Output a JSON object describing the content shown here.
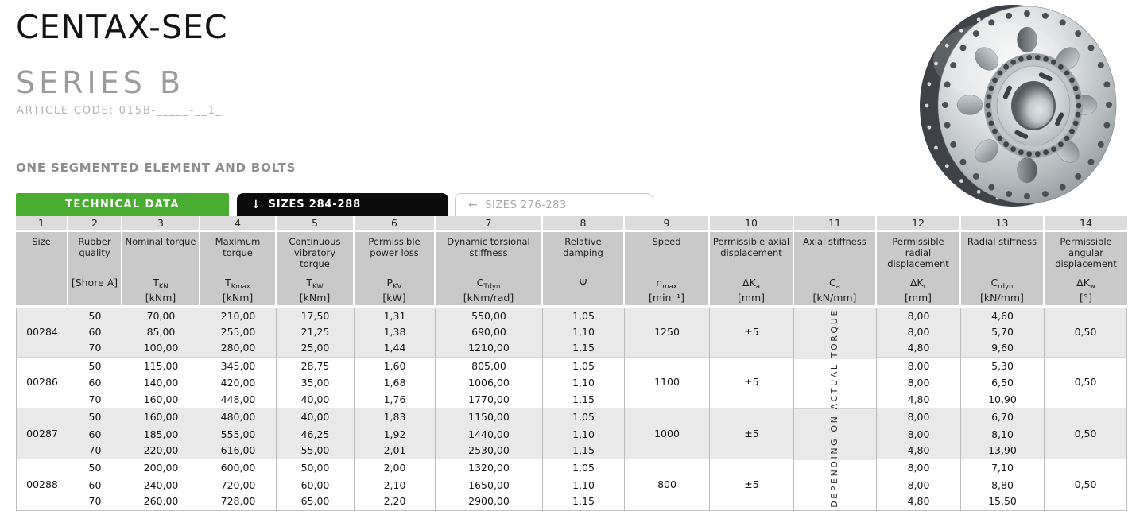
{
  "page": {
    "title": "CENTAX-SEC",
    "subtitle": "SERIES B",
    "article_code": "ARTICLE CODE: 015B-_____-__1_",
    "section_heading": "ONE SEGMENTED ELEMENT AND BOLTS"
  },
  "colors": {
    "accent_green": "#4aad31",
    "tab_black": "#0b0b0b",
    "header_gray": "#c9c9c9",
    "numrow_gray": "#dcdcdc",
    "row_shade": "#e9e9e9"
  },
  "tabs": [
    {
      "label": "TECHNICAL DATA",
      "icon": "",
      "active": true
    },
    {
      "label": "SIZES 284-288",
      "icon": "↓",
      "active": true
    },
    {
      "label": "SIZES 276-283",
      "icon": "←",
      "active": false
    }
  ],
  "table": {
    "column_numbers": [
      "1",
      "2",
      "3",
      "4",
      "5",
      "6",
      "7",
      "8",
      "9",
      "10",
      "11",
      "12",
      "13",
      "14"
    ],
    "columns": [
      {
        "name": "Size",
        "sym": "",
        "sub": "",
        "unit": ""
      },
      {
        "name": "Rubber quality",
        "sym": "[Shore A]",
        "sub": "",
        "unit": ""
      },
      {
        "name": "Nominal torque",
        "sym": "T",
        "sub": "KN",
        "unit": "[kNm]"
      },
      {
        "name": "Maximum torque",
        "sym": "T",
        "sub": "Kmax",
        "unit": "[kNm]"
      },
      {
        "name": "Continuous vibratory torque",
        "sym": "T",
        "sub": "KW",
        "unit": "[kNm]"
      },
      {
        "name": "Permissible power loss",
        "sym": "P",
        "sub": "KV",
        "unit": "[kW]"
      },
      {
        "name": "Dynamic torsional stiffness",
        "sym": "C",
        "sub": "Tdyn",
        "unit": "[kNm/rad]"
      },
      {
        "name": "Relative damping",
        "sym": "Ψ",
        "sub": "",
        "unit": ""
      },
      {
        "name": "Speed",
        "sym": "n",
        "sub": "max",
        "unit": "[min⁻¹]"
      },
      {
        "name": "Permissible axial displacement",
        "sym": "ΔK",
        "sub": "a",
        "unit": "[mm]"
      },
      {
        "name": "Axial stiffness",
        "sym": "C",
        "sub": "a",
        "unit": "[kN/mm]"
      },
      {
        "name": "Permissible radial displacement",
        "sym": "ΔK",
        "sub": "r",
        "unit": "[mm]"
      },
      {
        "name": "Radial stiffness",
        "sym": "C",
        "sub": "rdyn",
        "unit": "[kN/mm]"
      },
      {
        "name": "Permissible angular displacement",
        "sym": "ΔK",
        "sub": "w",
        "unit": "[°]"
      }
    ],
    "axial_stiffness_note": "DEPENDING ON ACTUAL TORQUE",
    "groups": [
      {
        "size": "00284",
        "speed": "1250",
        "axial_disp": "±5",
        "angular_disp": "0,50",
        "rows": [
          {
            "shore": "50",
            "tkn": "70,00",
            "tkmax": "210,00",
            "tkw": "17,50",
            "pkv": "1,31",
            "ctdyn": "550,00",
            "psi": "1,05",
            "dkr": "8,00",
            "crdyn": "4,60"
          },
          {
            "shore": "60",
            "tkn": "85,00",
            "tkmax": "255,00",
            "tkw": "21,25",
            "pkv": "1,38",
            "ctdyn": "690,00",
            "psi": "1,10",
            "dkr": "8,00",
            "crdyn": "5,70"
          },
          {
            "shore": "70",
            "tkn": "100,00",
            "tkmax": "280,00",
            "tkw": "25,00",
            "pkv": "1,44",
            "ctdyn": "1210,00",
            "psi": "1,15",
            "dkr": "4,80",
            "crdyn": "9,60"
          }
        ]
      },
      {
        "size": "00286",
        "speed": "1100",
        "axial_disp": "±5",
        "angular_disp": "0,50",
        "rows": [
          {
            "shore": "50",
            "tkn": "115,00",
            "tkmax": "345,00",
            "tkw": "28,75",
            "pkv": "1,60",
            "ctdyn": "805,00",
            "psi": "1,05",
            "dkr": "8,00",
            "crdyn": "5,30"
          },
          {
            "shore": "60",
            "tkn": "140,00",
            "tkmax": "420,00",
            "tkw": "35,00",
            "pkv": "1,68",
            "ctdyn": "1006,00",
            "psi": "1,10",
            "dkr": "8,00",
            "crdyn": "6,50"
          },
          {
            "shore": "70",
            "tkn": "160,00",
            "tkmax": "448,00",
            "tkw": "40,00",
            "pkv": "1,76",
            "ctdyn": "1770,00",
            "psi": "1,15",
            "dkr": "4,80",
            "crdyn": "10,90"
          }
        ]
      },
      {
        "size": "00287",
        "speed": "1000",
        "axial_disp": "±5",
        "angular_disp": "0,50",
        "rows": [
          {
            "shore": "50",
            "tkn": "160,00",
            "tkmax": "480,00",
            "tkw": "40,00",
            "pkv": "1,83",
            "ctdyn": "1150,00",
            "psi": "1,05",
            "dkr": "8,00",
            "crdyn": "6,70"
          },
          {
            "shore": "60",
            "tkn": "185,00",
            "tkmax": "555,00",
            "tkw": "46,25",
            "pkv": "1,92",
            "ctdyn": "1440,00",
            "psi": "1,10",
            "dkr": "8,00",
            "crdyn": "8,10"
          },
          {
            "shore": "70",
            "tkn": "220,00",
            "tkmax": "616,00",
            "tkw": "55,00",
            "pkv": "2,01",
            "ctdyn": "2530,00",
            "psi": "1,15",
            "dkr": "4,80",
            "crdyn": "13,90"
          }
        ]
      },
      {
        "size": "00288",
        "speed": "800",
        "axial_disp": "±5",
        "angular_disp": "0,50",
        "rows": [
          {
            "shore": "50",
            "tkn": "200,00",
            "tkmax": "600,00",
            "tkw": "50,00",
            "pkv": "2,00",
            "ctdyn": "1320,00",
            "psi": "1,05",
            "dkr": "8,00",
            "crdyn": "7,10"
          },
          {
            "shore": "60",
            "tkn": "240,00",
            "tkmax": "720,00",
            "tkw": "60,00",
            "pkv": "2,10",
            "ctdyn": "1650,00",
            "psi": "1,10",
            "dkr": "8,00",
            "crdyn": "8,80"
          },
          {
            "shore": "70",
            "tkn": "260,00",
            "tkmax": "728,00",
            "tkw": "65,00",
            "pkv": "2,20",
            "ctdyn": "2900,00",
            "psi": "1,15",
            "dkr": "4,80",
            "crdyn": "15,50"
          }
        ]
      }
    ]
  }
}
